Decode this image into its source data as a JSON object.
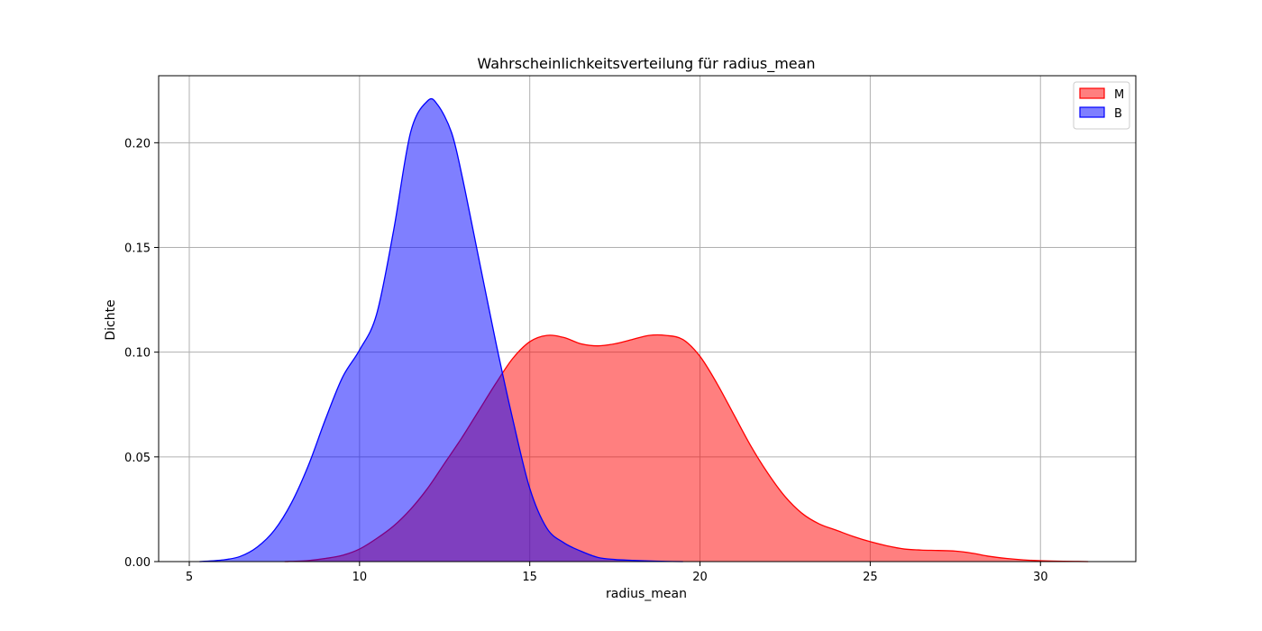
{
  "chart_data": {
    "type": "area",
    "title": "Wahrscheinlichkeitsverteilung für radius_mean",
    "xlabel": "radius_mean",
    "ylabel": "Dichte",
    "xlim": [
      4.1,
      32.8
    ],
    "ylim": [
      0,
      0.232
    ],
    "xticks": [
      5,
      10,
      15,
      20,
      25,
      30
    ],
    "yticks": [
      0.0,
      0.05,
      0.1,
      0.15,
      0.2
    ],
    "ytick_labels": [
      "0.00",
      "0.05",
      "0.10",
      "0.15",
      "0.20"
    ],
    "grid": true,
    "legend_position": "top-right",
    "series": [
      {
        "name": "M",
        "color": "#ff0000",
        "fill_opacity": 0.5,
        "x": [
          7.8,
          8.5,
          9.0,
          9.5,
          10.0,
          10.5,
          11.0,
          11.5,
          12.0,
          12.5,
          13.0,
          13.5,
          14.0,
          14.5,
          15.0,
          15.5,
          16.0,
          16.5,
          17.0,
          17.5,
          18.0,
          18.5,
          19.0,
          19.5,
          20.0,
          20.5,
          21.0,
          21.5,
          22.0,
          22.5,
          23.0,
          23.5,
          24.0,
          24.5,
          25.0,
          25.5,
          26.0,
          26.5,
          27.0,
          27.5,
          28.0,
          28.5,
          29.0,
          29.5,
          30.0,
          30.5,
          31.0,
          31.4
        ],
        "y": [
          0.0,
          0.0005,
          0.0015,
          0.003,
          0.006,
          0.011,
          0.017,
          0.025,
          0.035,
          0.047,
          0.059,
          0.072,
          0.085,
          0.097,
          0.105,
          0.108,
          0.107,
          0.104,
          0.103,
          0.104,
          0.106,
          0.108,
          0.108,
          0.106,
          0.098,
          0.085,
          0.07,
          0.055,
          0.042,
          0.031,
          0.023,
          0.018,
          0.015,
          0.012,
          0.0095,
          0.0075,
          0.006,
          0.0055,
          0.0053,
          0.005,
          0.004,
          0.0025,
          0.0015,
          0.0008,
          0.0004,
          0.0002,
          0.0001,
          0.0
        ]
      },
      {
        "name": "B",
        "color": "#0000ff",
        "fill_opacity": 0.5,
        "x": [
          5.3,
          6.0,
          6.5,
          7.0,
          7.5,
          8.0,
          8.5,
          9.0,
          9.5,
          10.0,
          10.5,
          11.0,
          11.5,
          12.0,
          12.3,
          12.7,
          13.0,
          13.5,
          14.0,
          14.5,
          15.0,
          15.5,
          16.0,
          16.5,
          17.0,
          17.5,
          18.0,
          18.5,
          19.0,
          19.5
        ],
        "y": [
          0.0,
          0.0008,
          0.0025,
          0.007,
          0.015,
          0.028,
          0.046,
          0.068,
          0.088,
          0.101,
          0.118,
          0.158,
          0.205,
          0.22,
          0.218,
          0.205,
          0.185,
          0.145,
          0.105,
          0.068,
          0.035,
          0.016,
          0.009,
          0.005,
          0.002,
          0.001,
          0.0006,
          0.0003,
          0.0001,
          0.0
        ]
      }
    ]
  }
}
